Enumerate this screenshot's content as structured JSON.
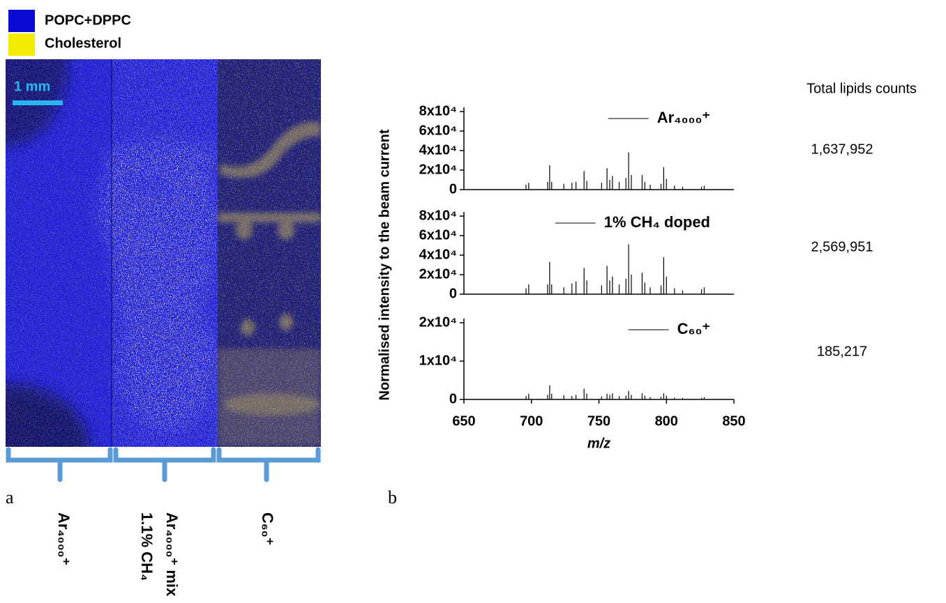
{
  "legend": {
    "items": [
      "POPC+DPPC",
      "Cholesterol"
    ],
    "colors": [
      "#0a0ad2",
      "#f2ea00"
    ]
  },
  "scale_bar": "1 mm",
  "panel_labels": [
    "a",
    "b"
  ],
  "image_columns": [
    {
      "lines": [
        "Ar₄₀₀₀⁺"
      ]
    },
    {
      "lines": [
        "Ar₄₀₀₀⁺ mix",
        "1.1% CH₄"
      ]
    },
    {
      "lines": [
        "C₆₀⁺"
      ]
    }
  ],
  "y_axis_label": "Normalised intensity to the beam current",
  "totals": {
    "header": "Total lipids counts",
    "values": [
      "1,637,952",
      "2,569,951",
      "185,217"
    ]
  },
  "chart_data": [
    {
      "type": "spectrum",
      "series": [
        {
          "name": "Ar₄₀₀₀⁺",
          "color": "#000000",
          "x": [
            696,
            698,
            712,
            713.5,
            715,
            724,
            730,
            733,
            739,
            741,
            752,
            756,
            758,
            760,
            765,
            770,
            772,
            774,
            782,
            784,
            788,
            796,
            798,
            800,
            806,
            812,
            826,
            828
          ],
          "values": [
            5000,
            7000,
            8000,
            25000,
            8000,
            6000,
            7000,
            8000,
            19000,
            9000,
            7000,
            22000,
            10000,
            14000,
            8000,
            12000,
            38000,
            15000,
            15000,
            8000,
            5000,
            6000,
            23000,
            11000,
            4000,
            3000,
            3000,
            4000
          ]
        }
      ],
      "xlim": [
        650,
        850
      ],
      "ylim": [
        0,
        80000
      ],
      "yticks": [
        0,
        {
          "value": 20000,
          "label": "2x10⁴"
        },
        {
          "value": 40000,
          "label": "4x10⁴"
        },
        {
          "value": 60000,
          "label": "6x10⁴"
        },
        {
          "value": 80000,
          "label": "8x10⁴"
        }
      ]
    },
    {
      "type": "spectrum",
      "series": [
        {
          "name": "1% CH₄ doped",
          "color": "#000000",
          "x": [
            696,
            698,
            712,
            713.5,
            715,
            724,
            730,
            733,
            739,
            741,
            752,
            756,
            758,
            760,
            765,
            770,
            772,
            774,
            782,
            784,
            788,
            796,
            798,
            800,
            806,
            812,
            826,
            828
          ],
          "values": [
            6000,
            10000,
            10000,
            33000,
            10000,
            7000,
            11000,
            13000,
            27000,
            14000,
            9000,
            29000,
            14000,
            18000,
            10000,
            16000,
            51000,
            20000,
            22000,
            12000,
            7000,
            9000,
            38000,
            18000,
            6000,
            4000,
            5000,
            7000
          ]
        }
      ],
      "xlim": [
        650,
        850
      ],
      "ylim": [
        0,
        80000
      ],
      "yticks": [
        0,
        {
          "value": 20000,
          "label": "2x10⁴"
        },
        {
          "value": 40000,
          "label": "4x10⁴"
        },
        {
          "value": 60000,
          "label": "6x10⁴"
        },
        {
          "value": 80000,
          "label": "8x10⁴"
        }
      ]
    },
    {
      "type": "spectrum",
      "series": [
        {
          "name": "C₆₀⁺",
          "color": "#000000",
          "x": [
            696,
            698,
            712,
            713.5,
            715,
            724,
            730,
            733,
            739,
            741,
            752,
            756,
            758,
            760,
            765,
            770,
            772,
            774,
            782,
            784,
            788,
            796,
            798,
            800,
            806,
            812,
            826,
            828
          ],
          "values": [
            900,
            1500,
            1200,
            3700,
            1500,
            1100,
            900,
            1200,
            2800,
            1500,
            800,
            1500,
            1200,
            1600,
            900,
            1000,
            2200,
            1200,
            1600,
            1000,
            600,
            700,
            1600,
            1000,
            500,
            400,
            400,
            600
          ]
        }
      ],
      "xlim": [
        650,
        850
      ],
      "ylim": [
        0,
        20000
      ],
      "yticks": [
        0,
        {
          "value": 10000,
          "label": "1x10⁴"
        },
        {
          "value": 20000,
          "label": "2x10⁴"
        }
      ],
      "xticks": [
        650,
        700,
        750,
        800,
        850
      ],
      "xlabel": "m/z"
    }
  ]
}
